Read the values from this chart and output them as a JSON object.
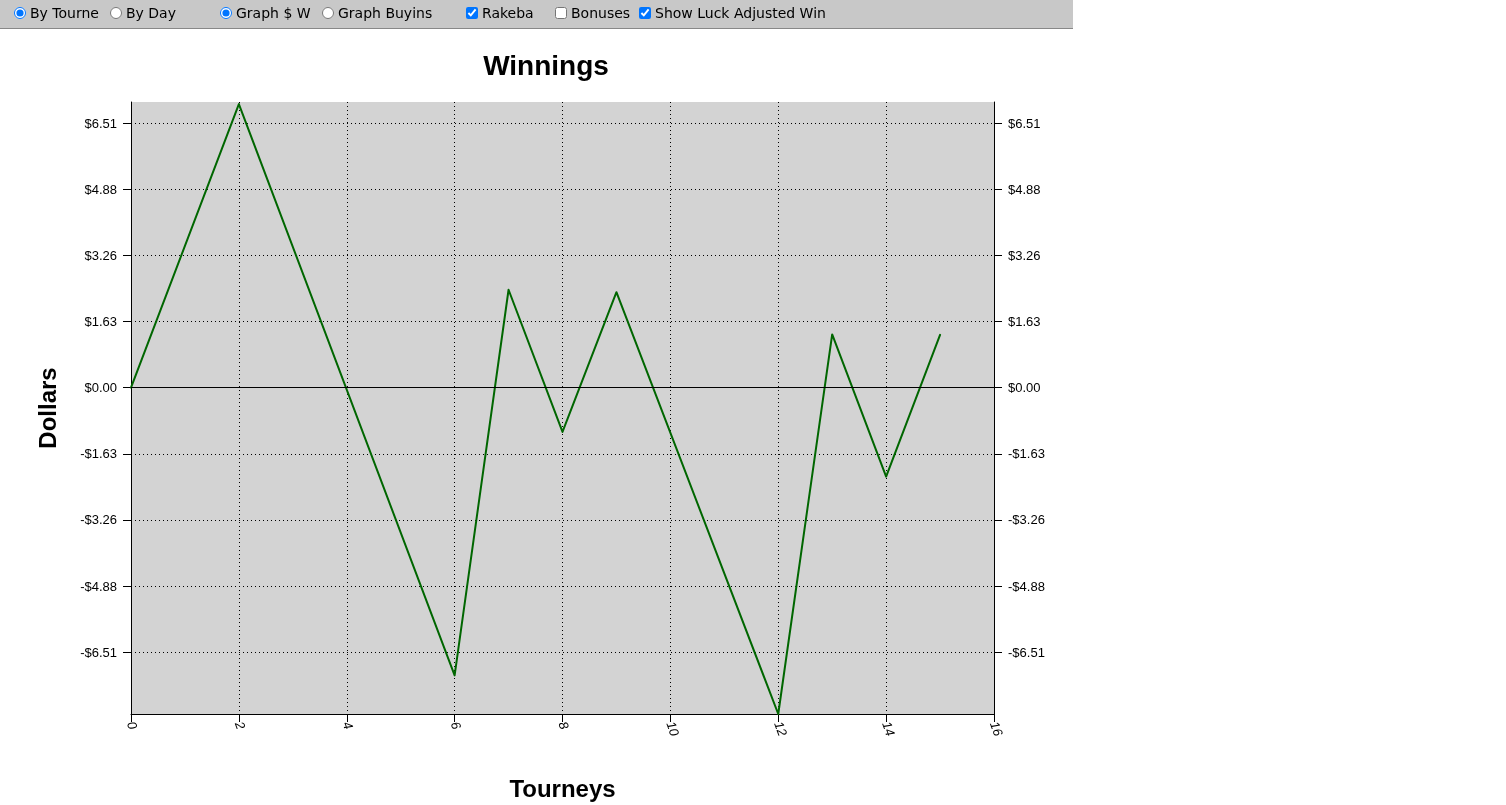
{
  "chart_data": {
    "type": "line",
    "title": "Winnings",
    "xlabel": "Tourneys",
    "ylabel": "Dollars",
    "annotations": [
      "By Tourne",
      "By Day",
      "Graph $ W",
      "Graph Buyins",
      "Rakeba",
      "Bonuses",
      "Show Luck Adjusted Win"
    ],
    "series": [
      {
        "color": "#006600",
        "x": [
          0,
          2,
          6,
          7,
          8,
          9,
          12,
          13,
          14,
          15
        ],
        "values": [
          0,
          6.98,
          -7.08,
          2.41,
          -1.09,
          2.35,
          -8.03,
          1.31,
          -2.19,
          1.3
        ]
      }
    ],
    "xlim": [
      0,
      16
    ],
    "xticks": [
      0,
      2,
      4,
      6,
      8,
      10,
      12,
      14,
      16
    ],
    "ylim": [
      -8.03,
      7.03
    ],
    "yticks": [
      {
        "value": -6.51,
        "label": "-$6.51"
      },
      {
        "value": -4.8825,
        "label": "-$4.88"
      },
      {
        "value": -3.255,
        "label": "-$3.26"
      },
      {
        "value": -1.6275,
        "label": "-$1.63"
      },
      {
        "value": 0,
        "label": "$0.00"
      },
      {
        "value": 1.6275,
        "label": "$1.63"
      },
      {
        "value": 3.255,
        "label": "$3.26"
      },
      {
        "value": 4.8825,
        "label": "$4.88"
      },
      {
        "value": 6.51,
        "label": "$6.51"
      }
    ],
    "y2lim": [
      -8.03,
      7.03
    ],
    "y2ticks": [
      {
        "value": -6.51,
        "label": "-$6.51"
      },
      {
        "value": -4.8825,
        "label": "-$4.88"
      },
      {
        "value": -3.255,
        "label": "-$3.26"
      },
      {
        "value": -1.6275,
        "label": "-$1.63"
      },
      {
        "value": 0,
        "label": "$0.00"
      },
      {
        "value": 1.6275,
        "label": "$1.63"
      },
      {
        "value": 3.255,
        "label": "$3.26"
      },
      {
        "value": 4.8825,
        "label": "$4.88"
      },
      {
        "value": 6.51,
        "label": "$6.51"
      }
    ],
    "ref_lines": [
      {
        "axis": "y",
        "value": 0,
        "color": "#000000"
      }
    ],
    "grid": true,
    "marker": "none",
    "line_style": "solid"
  }
}
